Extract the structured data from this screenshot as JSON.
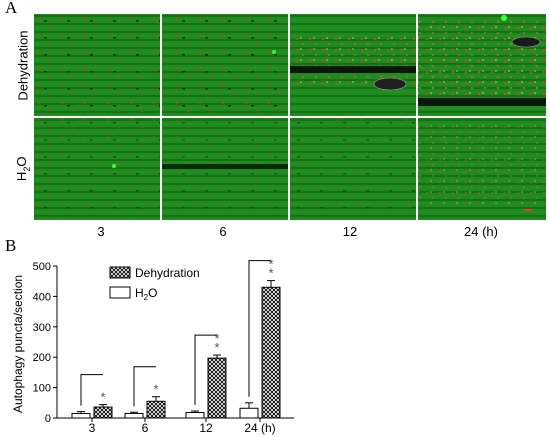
{
  "panel_a": {
    "letter": "A",
    "row_labels": [
      "Dehydration",
      "H2O"
    ],
    "row_label_h2o": {
      "base": "H",
      "sub": "2",
      "rest": "O"
    },
    "column_labels": [
      "3",
      "6",
      "12",
      "24 (h)"
    ]
  },
  "panel_b": {
    "letter": "B",
    "ylabel": "Autophagy puncta/section",
    "legend": {
      "dehydration": "Dehydration",
      "h2o": {
        "base": "H",
        "sub": "2",
        "rest": "O"
      }
    }
  },
  "chart_data": {
    "type": "bar",
    "categories": [
      "3",
      "6",
      "12",
      "24 (h)"
    ],
    "ylim": [
      0,
      500
    ],
    "yticks": [
      0,
      100,
      200,
      300,
      400,
      500
    ],
    "series": [
      {
        "name": "H2O",
        "values": [
          15,
          15,
          18,
          32
        ],
        "errors": [
          6,
          4,
          5,
          18
        ],
        "fill": "white"
      },
      {
        "name": "Dehydration",
        "values": [
          36,
          55,
          197,
          430
        ],
        "errors": [
          8,
          15,
          10,
          22
        ],
        "fill": "crosshatch"
      }
    ],
    "significance": [
      "*",
      "*",
      "**",
      "**"
    ],
    "legend_position": "top-left"
  },
  "colors": {
    "tissue_green": "#1f8f1f",
    "red_puncta": "#e02020",
    "bar_stroke": "#000000"
  }
}
